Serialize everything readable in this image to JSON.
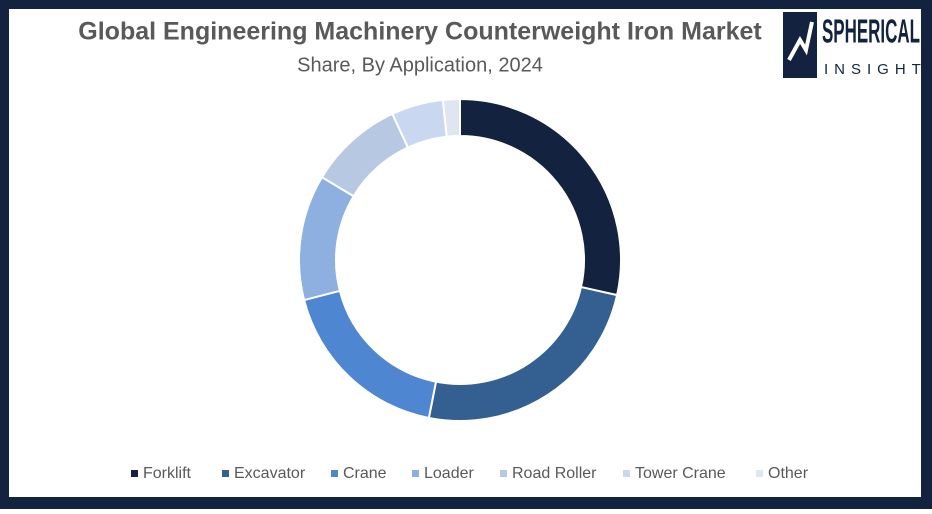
{
  "chart_data": {
    "type": "donut",
    "title": "Global Engineering Machinery Counterweight Iron Market",
    "subtitle": "Share, By Application, 2024",
    "categories": [
      "Forklift",
      "Excavator",
      "Crane",
      "Loader",
      "Road Roller",
      "Tower Crane",
      "Other"
    ],
    "values": [
      28.5,
      24.6,
      17.9,
      12.6,
      9.5,
      5.2,
      1.7
    ],
    "colors": [
      "#13233f",
      "#335f91",
      "#4f86d1",
      "#8eb0e0",
      "#b7c9e2",
      "#c9d8f0",
      "#dfe6f2"
    ],
    "legend": "bottom"
  },
  "logo": {
    "name": "SPHERICAL",
    "tagline": "INSIGHTS"
  }
}
